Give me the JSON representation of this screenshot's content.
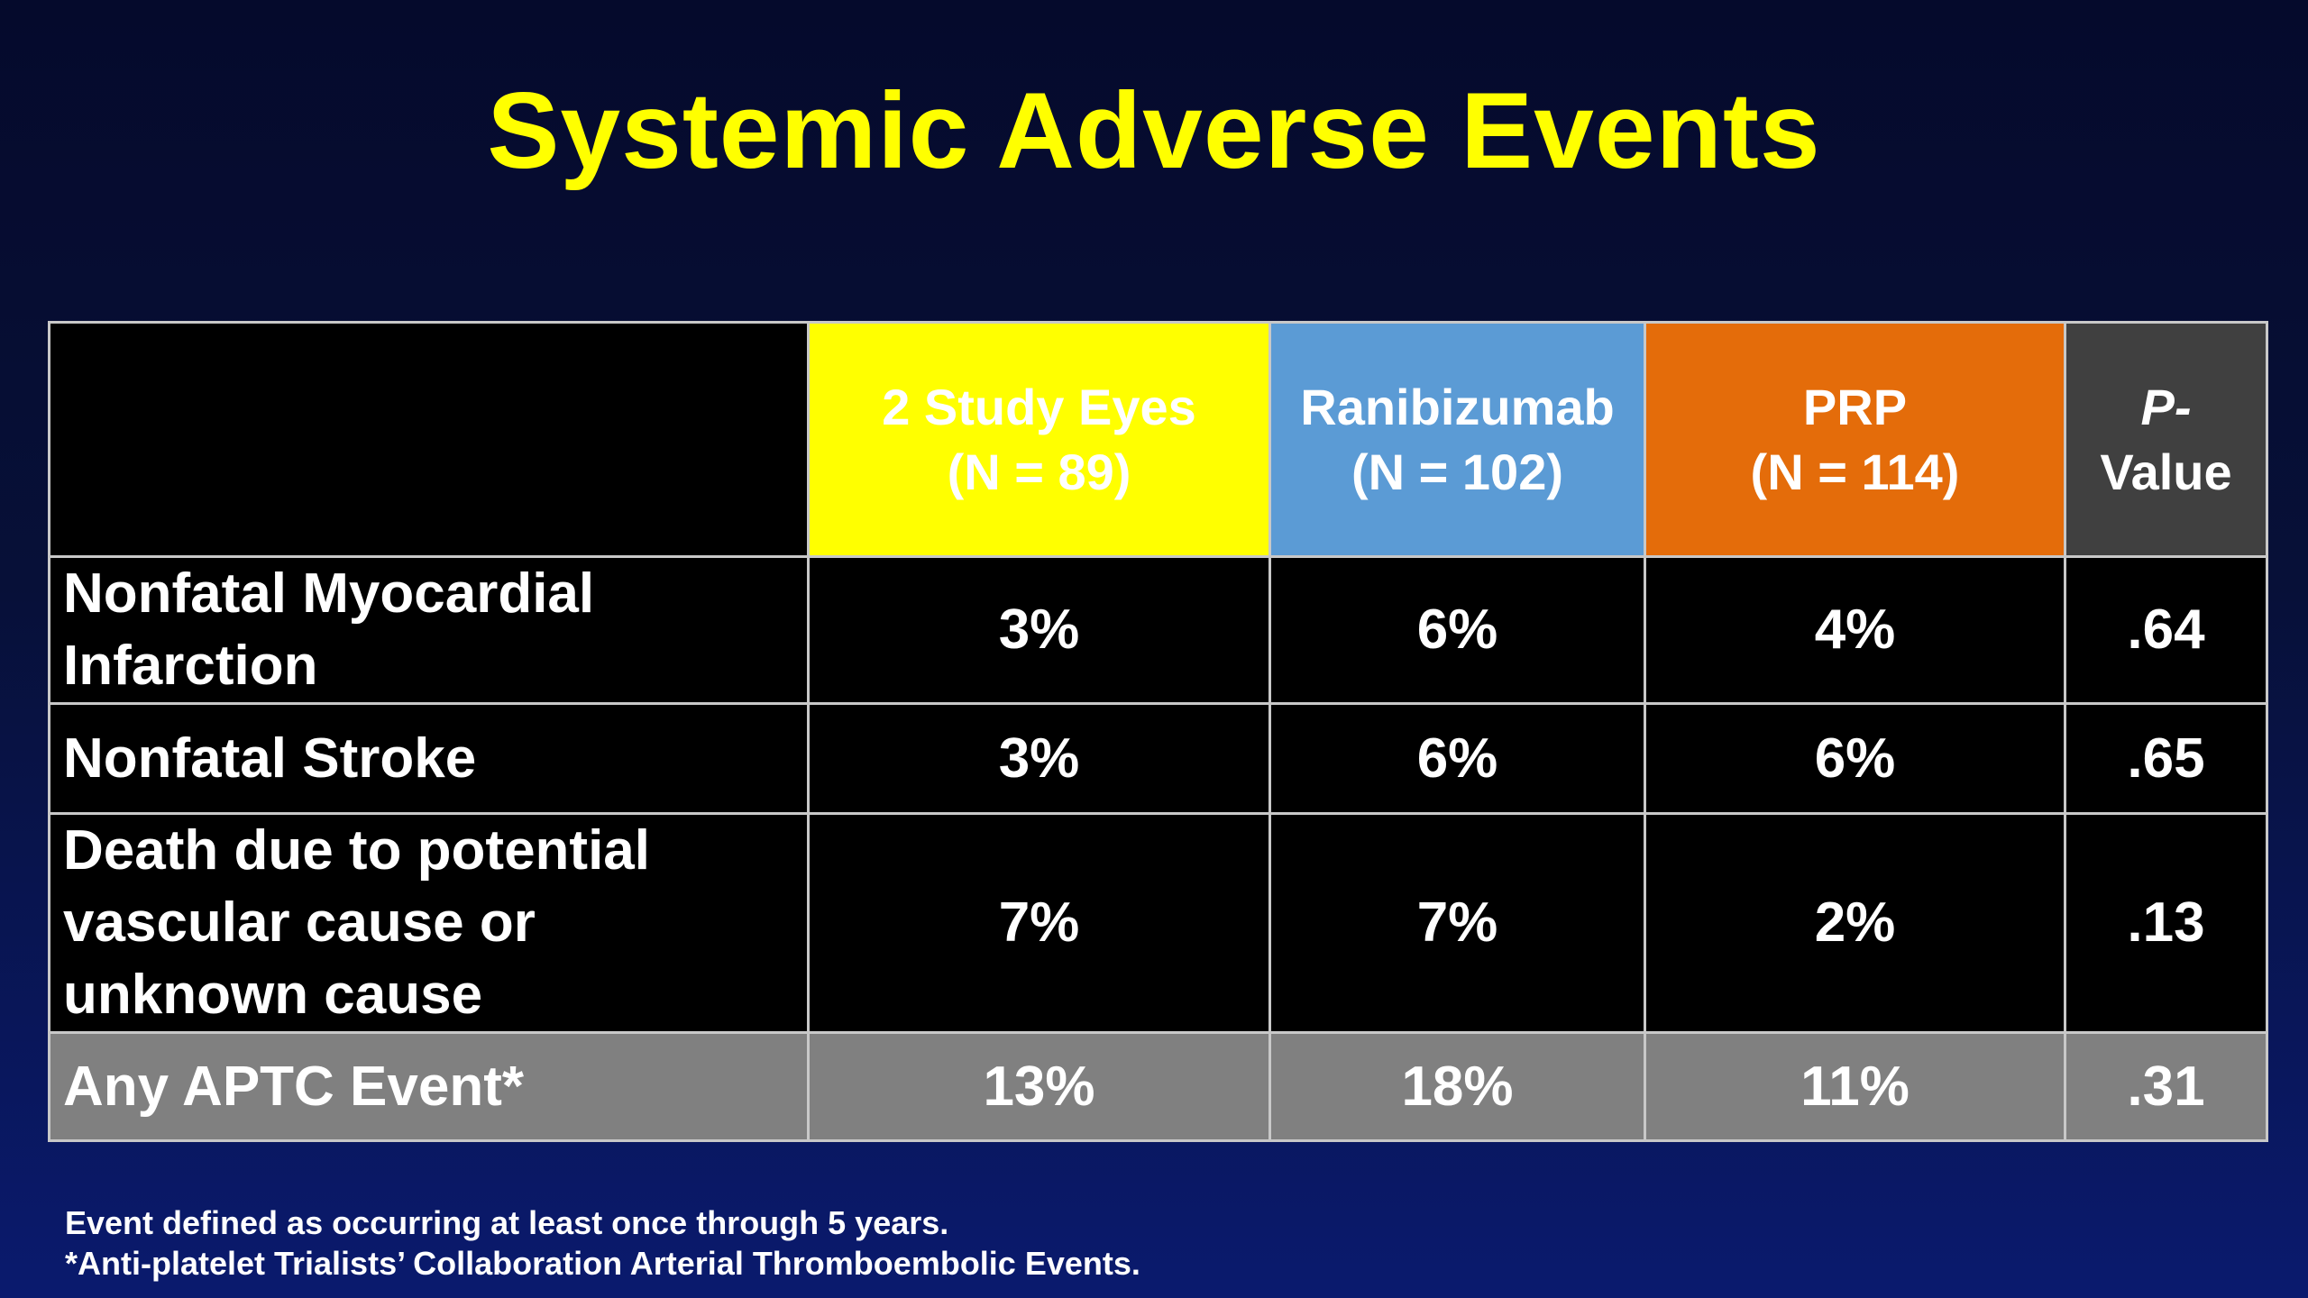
{
  "slide": {
    "title": "Systemic Adverse Events"
  },
  "table": {
    "header": {
      "col1": {
        "line1": "2 Study Eyes",
        "line2": "(N = 89)"
      },
      "col2": {
        "line1": "Ranibizumab",
        "line2": "(N = 102)"
      },
      "col3": {
        "line1": "PRP",
        "line2": "(N = 114)"
      },
      "col4": {
        "line1": "P-",
        "line2": "Value"
      }
    },
    "rows": [
      {
        "label_line1": "Nonfatal Myocardial",
        "label_line2": "Infarction",
        "v1": "3%",
        "v2": "6%",
        "v3": "4%",
        "p": ".64"
      },
      {
        "label_line1": "Nonfatal Stroke",
        "v1": "3%",
        "v2": "6%",
        "v3": "6%",
        "p": ".65"
      },
      {
        "label_line1": "Death due to potential",
        "label_line2": "vascular cause or",
        "label_line3": "unknown cause",
        "v1": "7%",
        "v2": "7%",
        "v3": "2%",
        "p": ".13"
      }
    ],
    "total": {
      "label": "Any APTC Event*",
      "v1": "13%",
      "v2": "18%",
      "v3": "11%",
      "p": ".31"
    }
  },
  "footnotes": {
    "line1": "Event defined as occurring at least once through 5 years.",
    "line2": "*Anti-platelet Trialists’ Collaboration Arterial Thromboembolic Events."
  },
  "colors": {
    "title": "#ffff00",
    "study_eyes_header": "#ffff00",
    "ranibizumab_header": "#5b9bd5",
    "prp_header": "#e46c0a",
    "pvalue_header": "#404040",
    "total_row": "#808080"
  }
}
